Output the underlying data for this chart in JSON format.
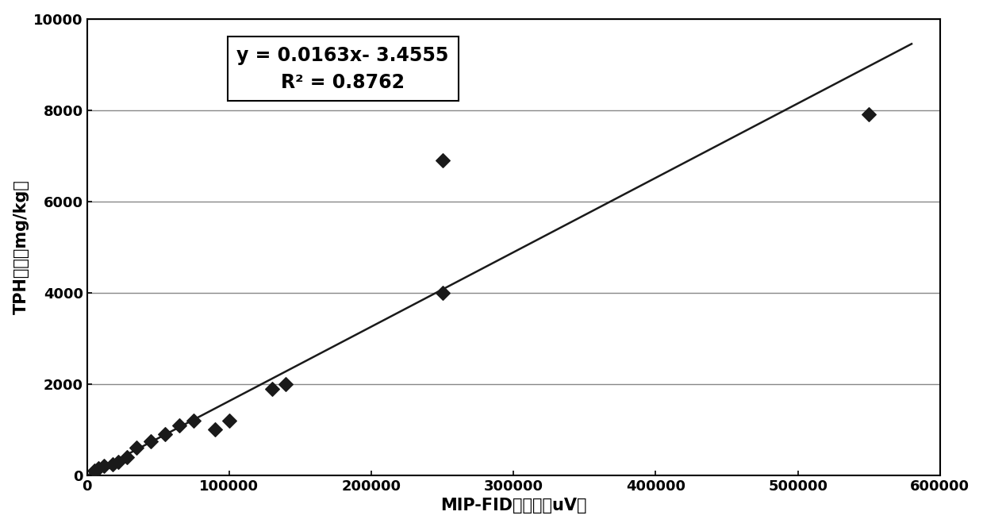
{
  "scatter_x": [
    5000,
    8000,
    12000,
    18000,
    22000,
    28000,
    35000,
    45000,
    55000,
    65000,
    75000,
    90000,
    100000,
    130000,
    140000,
    250000,
    250000,
    550000
  ],
  "scatter_y": [
    100,
    150,
    200,
    250,
    300,
    400,
    600,
    750,
    900,
    1100,
    1200,
    1000,
    1200,
    1900,
    2000,
    4000,
    6900,
    7900
  ],
  "slope": 0.0163,
  "intercept": -3.4555,
  "r_squared": 0.8762,
  "equation_text": "y = 0.0163x- 3.4555",
  "r2_text": "R² = 0.8762",
  "xlabel": "MIP-FID响应値（uV）",
  "ylabel": "TPH浓度（mg/kg）",
  "xlim": [
    0,
    600000
  ],
  "ylim": [
    0,
    10000
  ],
  "xticks": [
    0,
    100000,
    200000,
    300000,
    400000,
    500000,
    600000
  ],
  "yticks": [
    0,
    2000,
    4000,
    6000,
    8000,
    10000
  ],
  "xtick_labels": [
    "0",
    "100000",
    "200000",
    "300000",
    "400000",
    "500000",
    "600000"
  ],
  "ytick_labels": [
    "0",
    "2000",
    "4000",
    "6000",
    "8000",
    "10000"
  ],
  "marker_color": "#1a1a1a",
  "line_color": "#1a1a1a",
  "line_x_end": 580000,
  "background_color": "#ffffff",
  "annotation_fontsize": 17,
  "axis_label_fontsize": 15,
  "tick_fontsize": 13,
  "grid_color": "#888888",
  "border_color": "#000000"
}
